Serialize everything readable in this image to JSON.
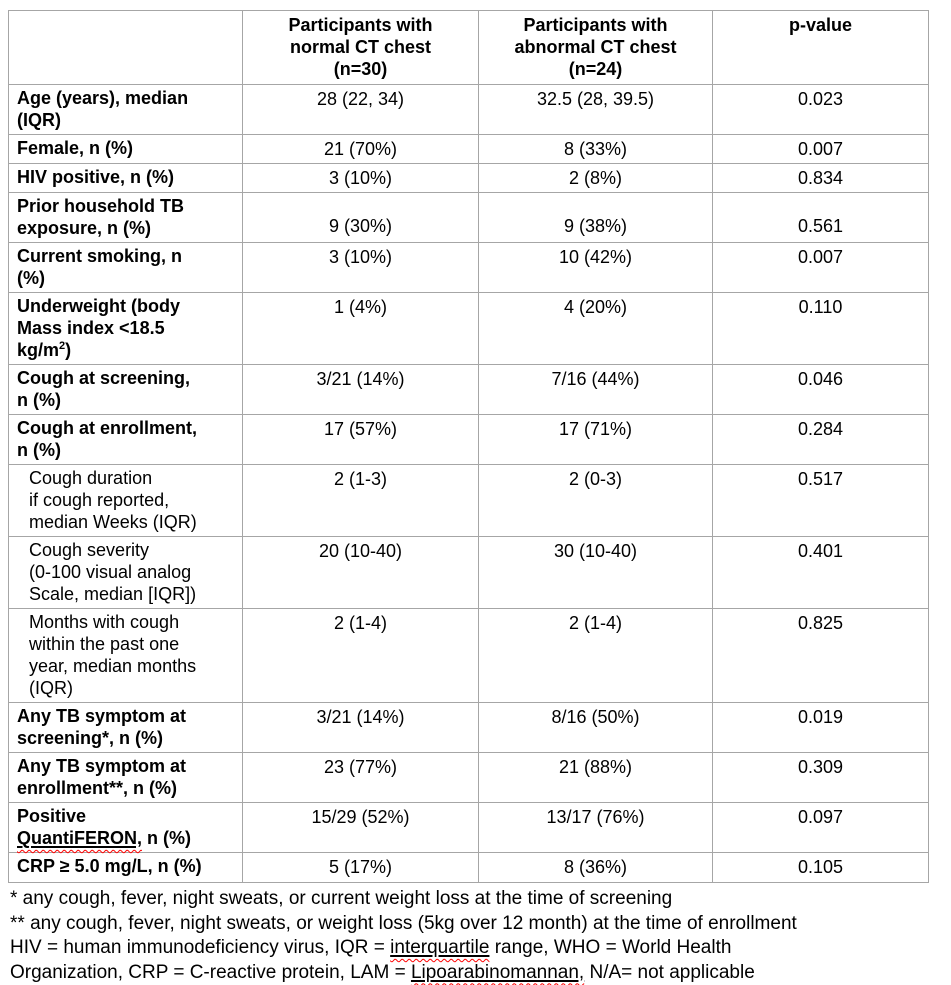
{
  "table": {
    "header": {
      "col_blank": "",
      "col_normal": "Participants with\nnormal CT chest\n(n=30)",
      "col_abnormal": "Participants with\nabnormal CT chest\n(n=24)",
      "col_pvalue": "p-value"
    },
    "rows": [
      {
        "id": "age",
        "bold": true,
        "indent": false,
        "label_lines": [
          [
            {
              "t": "Age (years), median"
            }
          ],
          [
            {
              "t": "(IQR)"
            }
          ]
        ],
        "normal": "28 (22, 34)",
        "abnormal": "32.5 (28, 39.5)",
        "p": "0.023"
      },
      {
        "id": "female",
        "bold": true,
        "indent": false,
        "label_lines": [
          [
            {
              "t": "Female, n (%)"
            }
          ]
        ],
        "normal": "21 (70%)",
        "abnormal": "8 (33%)",
        "p": "0.007"
      },
      {
        "id": "hiv-positive",
        "bold": true,
        "indent": false,
        "label_lines": [
          [
            {
              "t": "HIV positive, n (%)"
            }
          ]
        ],
        "normal": "3 (10%)",
        "abnormal": "2 (8%)",
        "p": "0.834"
      },
      {
        "id": "prior-household-tb-exposure",
        "bold": true,
        "indent": false,
        "valign": "bottom",
        "label_lines": [
          [
            {
              "t": "Prior household TB"
            }
          ],
          [
            {
              "t": "exposure, n (%)"
            }
          ]
        ],
        "normal": "9 (30%)",
        "abnormal": "9 (38%)",
        "p": "0.561"
      },
      {
        "id": "current-smoking",
        "bold": true,
        "indent": false,
        "label_lines": [
          [
            {
              "t": "Current smoking, n"
            }
          ],
          [
            {
              "t": "(%)"
            }
          ]
        ],
        "normal": "3 (10%)",
        "abnormal": "10 (42%)",
        "p": "0.007"
      },
      {
        "id": "underweight",
        "bold": true,
        "indent": false,
        "label_lines": [
          [
            {
              "t": "Underweight (body"
            }
          ],
          [
            {
              "t": "Mass index <18.5"
            }
          ],
          [
            {
              "t": "kg/m"
            },
            {
              "t": "2",
              "sup": true
            },
            {
              "t": ")"
            }
          ]
        ],
        "normal": "1 (4%)",
        "abnormal": "4 (20%)",
        "p": "0.110"
      },
      {
        "id": "cough-at-screening",
        "bold": true,
        "indent": false,
        "label_lines": [
          [
            {
              "t": "Cough at screening,"
            }
          ],
          [
            {
              "t": "n (%)"
            }
          ]
        ],
        "normal": "3/21 (14%)",
        "abnormal": "7/16 (44%)",
        "p": "0.046"
      },
      {
        "id": "cough-at-enrollment",
        "bold": true,
        "indent": false,
        "label_lines": [
          [
            {
              "t": "Cough at enrollment,"
            }
          ],
          [
            {
              "t": "n (%)"
            }
          ]
        ],
        "normal": "17 (57%)",
        "abnormal": "17 (71%)",
        "p": "0.284"
      },
      {
        "id": "cough-duration",
        "bold": false,
        "indent": true,
        "label_lines": [
          [
            {
              "t": "Cough duration"
            }
          ],
          [
            {
              "t": "if cough reported,"
            }
          ],
          [
            {
              "t": "median Weeks (IQR)"
            }
          ]
        ],
        "normal": "2 (1-3)",
        "abnormal": "2 (0-3)",
        "p": "0.517"
      },
      {
        "id": "cough-severity",
        "bold": false,
        "indent": true,
        "label_lines": [
          [
            {
              "t": "Cough severity"
            }
          ],
          [
            {
              "t": "(0-100 visual analog"
            }
          ],
          [
            {
              "t": "Scale, median [IQR])"
            }
          ]
        ],
        "normal": "20 (10-40)",
        "abnormal": "30 (10-40)",
        "p": "0.401"
      },
      {
        "id": "months-with-cough",
        "bold": false,
        "indent": true,
        "label_lines": [
          [
            {
              "t": "Months with cough"
            }
          ],
          [
            {
              "t": "within the past one"
            }
          ],
          [
            {
              "t": "year, median months"
            }
          ],
          [
            {
              "t": "(IQR)"
            }
          ]
        ],
        "normal": "2 (1-4)",
        "abnormal": "2 (1-4)",
        "p": "0.825"
      },
      {
        "id": "any-tb-symptom-screening",
        "bold": true,
        "indent": false,
        "label_lines": [
          [
            {
              "t": "Any TB symptom at"
            }
          ],
          [
            {
              "t": "screening*, n (%)"
            }
          ]
        ],
        "normal": "3/21 (14%)",
        "abnormal": "8/16 (50%)",
        "p": "0.019"
      },
      {
        "id": "any-tb-symptom-enrollment",
        "bold": true,
        "indent": false,
        "label_lines": [
          [
            {
              "t": "Any TB symptom at"
            }
          ],
          [
            {
              "t": "enrollment**, n (%)"
            }
          ]
        ],
        "normal": "23 (77%)",
        "abnormal": "21 (88%)",
        "p": "0.309"
      },
      {
        "id": "positive-quantiferon",
        "bold": true,
        "indent": false,
        "label_lines": [
          [
            {
              "t": "Positive"
            }
          ],
          [
            {
              "t": "QuantiFERON,",
              "flag": true
            },
            {
              "t": " n (%)"
            }
          ]
        ],
        "normal": "15/29 (52%)",
        "abnormal": "13/17 (76%)",
        "p": "0.097"
      },
      {
        "id": "crp",
        "bold": true,
        "indent": false,
        "tall": true,
        "label_lines": [
          [
            {
              "t": "CRP ≥ 5.0 mg/L, n (%)"
            }
          ]
        ],
        "normal": "5 (17%)",
        "abnormal": "8 (36%)",
        "p": "0.105"
      }
    ]
  },
  "footnotes": {
    "lines": [
      [
        {
          "t": "* any cough, fever, night sweats, or current weight loss at the time of screening"
        }
      ],
      [
        {
          "t": "** any cough, fever, night sweats, or weight loss (5kg over 12 month) at the time of enrollment"
        }
      ],
      [
        {
          "t": "HIV = human immunodeficiency virus, IQR = "
        },
        {
          "t": "interquartile",
          "flag": true
        },
        {
          "t": " range, WHO = World Health"
        }
      ],
      [
        {
          "t": "Organization, CRP = C-reactive protein, LAM = "
        },
        {
          "t": "Lipoarabinomannan,",
          "flag": true
        },
        {
          "t": " N/A= not applicable"
        }
      ]
    ]
  },
  "colors": {
    "border": "#a6a6a6",
    "text": "#000000",
    "spellcheck_squiggle": "#ff0000"
  }
}
